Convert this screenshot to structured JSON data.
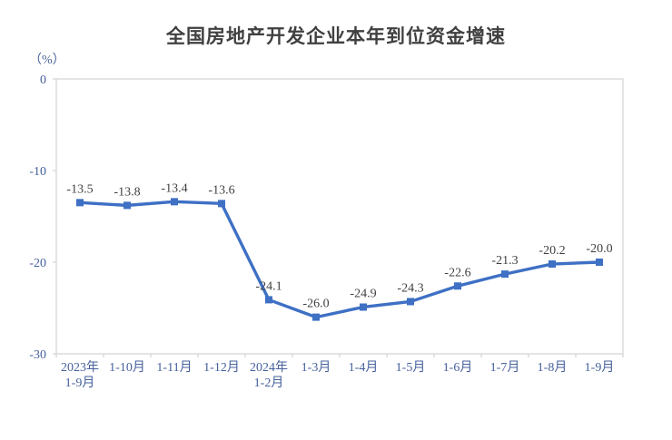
{
  "chart": {
    "title": "全国房地产开发企业本年到位资金增速",
    "unit": "（%）"
  },
  "chart_data": {
    "type": "line",
    "title": "全国房地产开发企业本年到位资金增速",
    "unit_label": "（%）",
    "categories": [
      "2023年\n1-9月",
      "1-10月",
      "1-11月",
      "1-12月",
      "2024年\n1-2月",
      "1-3月",
      "1-4月",
      "1-5月",
      "1-6月",
      "1-7月",
      "1-8月",
      "1-9月"
    ],
    "values": [
      -13.5,
      -13.8,
      -13.4,
      -13.6,
      -24.1,
      -26.0,
      -24.9,
      -24.3,
      -22.6,
      -21.3,
      -20.2,
      -20.0
    ],
    "data_labels": [
      "-13.5",
      "-13.8",
      "-13.4",
      "-13.6",
      "-24.1",
      "-26.0",
      "-24.9",
      "-24.3",
      "-22.6",
      "-21.3",
      "-20.2",
      "-20.0"
    ],
    "ylim": [
      -30,
      0
    ],
    "yticks": [
      0,
      -10,
      -20,
      -30
    ],
    "grid": false,
    "legend": "none",
    "marker": "square",
    "colors": {
      "line": "#3E70C4",
      "marker": "#3E70C4",
      "axis_line": "#D6D6D6",
      "tick_label": "#46619C",
      "data_label": "#3F3F3F",
      "title": "#404040",
      "background": "#FFFFFF"
    }
  }
}
